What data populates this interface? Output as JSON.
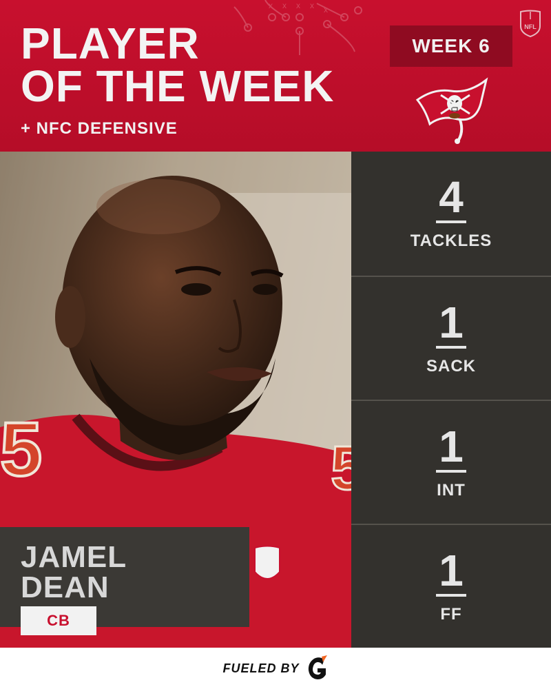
{
  "header": {
    "title_line1": "PLAYER",
    "title_line2": "OF THE WEEK",
    "subtitle": "+ NFC DEFENSIVE",
    "week": "WEEK 6",
    "nfl_badge_text": "NFL"
  },
  "player": {
    "first_name": "JAMEL",
    "last_name": "DEAN",
    "position": "CB"
  },
  "stats": [
    {
      "value": "4",
      "label": "TACKLES"
    },
    {
      "value": "1",
      "label": "SACK"
    },
    {
      "value": "1",
      "label": "INT"
    },
    {
      "value": "1",
      "label": "FF"
    }
  ],
  "footer": {
    "text": "FUELED BY",
    "sponsor_icon": "gatorade-g-icon"
  },
  "colors": {
    "team_red": "#c8102e",
    "dark_red": "#8f0b21",
    "panel_dark": "#33312d",
    "name_box": "#3b3935",
    "text_light": "#e6e6e6"
  }
}
